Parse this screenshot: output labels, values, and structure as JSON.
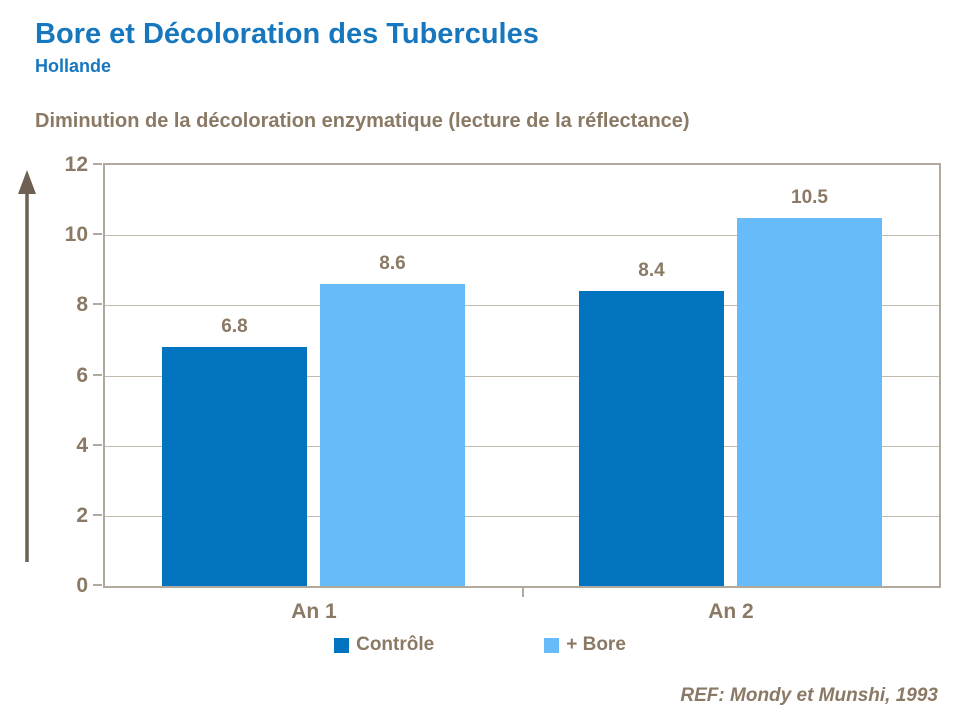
{
  "header": {
    "title": "Bore et Décoloration des Tubercules",
    "subtitle": "Hollande"
  },
  "footer": {
    "ref": "REF: Mondy et Munshi, 1993"
  },
  "colors": {
    "title_blue": "#1777BE",
    "text_brown": "#8A7965",
    "arrow_brown": "#6E6152",
    "plot_border": "#B2A99E",
    "gridline": "#C3BBB0",
    "control_bar": "#0173BF",
    "bore_bar": "#66BBF8"
  },
  "icons": {
    "up_arrow": "y-axis-up-arrow"
  },
  "chart_data": {
    "type": "bar",
    "title": "Diminution de la décoloration enzymatique (lecture de la réflectance)",
    "categories": [
      "An 1",
      "An 2"
    ],
    "series": [
      {
        "name": "Contrôle",
        "color": "#0173BF",
        "values": [
          6.8,
          8.4
        ]
      },
      {
        "name": "+ Bore",
        "color": "#66BBF8",
        "values": [
          8.6,
          10.5
        ]
      }
    ],
    "xlabel": "",
    "ylabel": "",
    "ylim": [
      0,
      12
    ],
    "yticks": [
      0,
      2,
      4,
      6,
      8,
      10,
      12
    ],
    "grid": true,
    "legend_position": "bottom",
    "value_label_format": "one_decimal"
  }
}
